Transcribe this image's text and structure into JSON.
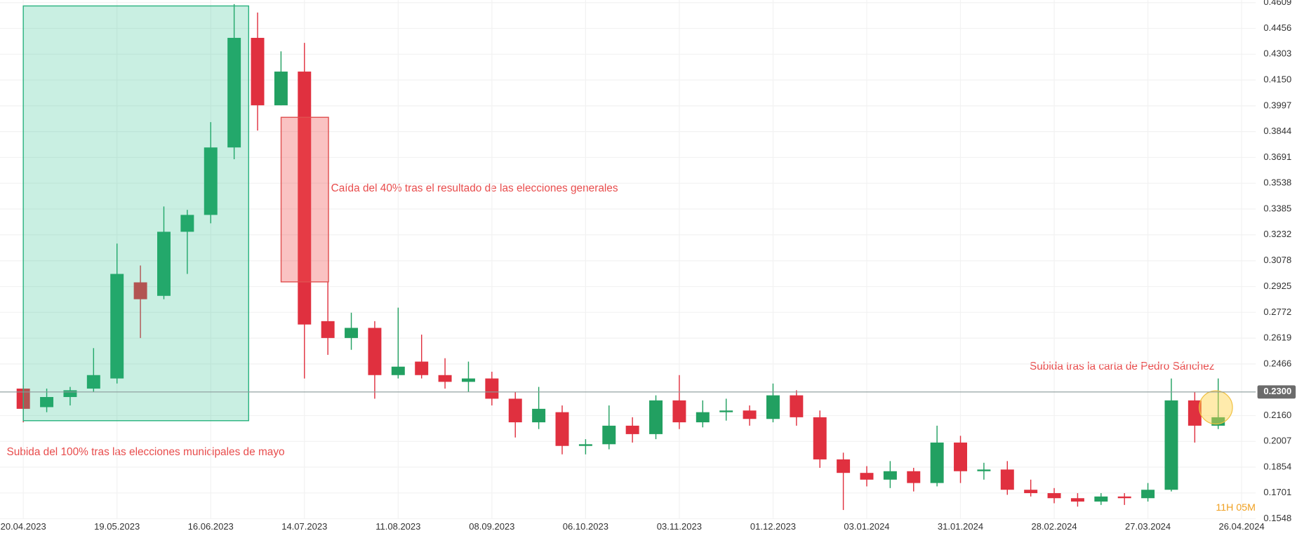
{
  "chart_data": {
    "type": "candlestick",
    "categories": [
      "20.04.2023",
      null,
      null,
      null,
      "19.05.2023",
      null,
      null,
      null,
      "16.06.2023",
      null,
      null,
      null,
      "14.07.2023",
      null,
      null,
      null,
      "11.08.2023",
      null,
      null,
      null,
      "08.09.2023",
      null,
      null,
      null,
      "06.10.2023",
      null,
      null,
      null,
      "03.11.2023",
      null,
      null,
      null,
      "01.12.2023",
      null,
      null,
      null,
      "03.01.2024",
      null,
      null,
      null,
      "31.01.2024",
      null,
      null,
      null,
      "28.02.2024",
      null,
      null,
      null,
      "27.03.2024",
      null,
      null,
      null,
      "26.04.2024"
    ],
    "open": [
      0.232,
      0.221,
      0.227,
      0.232,
      0.238,
      0.295,
      0.287,
      0.325,
      0.335,
      0.375,
      0.44,
      0.4,
      0.42,
      0.272,
      0.262,
      0.268,
      0.24,
      0.248,
      0.24,
      0.236,
      0.238,
      0.226,
      0.212,
      0.218,
      0.198,
      0.199,
      0.21,
      0.205,
      0.225,
      0.212,
      0.218,
      0.219,
      0.214,
      0.228,
      0.215,
      0.19,
      0.182,
      0.178,
      0.183,
      0.176,
      0.2,
      0.183,
      0.184,
      0.172,
      0.17,
      0.167,
      0.165,
      0.168,
      0.167,
      0.172,
      0.225,
      0.21,
      null
    ],
    "high": [
      0.234,
      0.232,
      0.233,
      0.256,
      0.318,
      0.305,
      0.34,
      0.338,
      0.39,
      0.46,
      0.455,
      0.432,
      0.437,
      0.295,
      0.277,
      0.272,
      0.28,
      0.264,
      0.25,
      0.248,
      0.242,
      0.23,
      0.233,
      0.222,
      0.202,
      0.222,
      0.215,
      0.228,
      0.24,
      0.225,
      0.226,
      0.222,
      0.235,
      0.231,
      0.219,
      0.194,
      0.186,
      0.189,
      0.185,
      0.21,
      0.204,
      0.188,
      0.189,
      0.178,
      0.173,
      0.17,
      0.17,
      0.17,
      0.176,
      0.238,
      0.23,
      0.238,
      null
    ],
    "low": [
      0.212,
      0.218,
      0.222,
      0.23,
      0.235,
      0.262,
      0.285,
      0.3,
      0.33,
      0.368,
      0.385,
      0.4,
      0.238,
      0.252,
      0.255,
      0.226,
      0.238,
      0.238,
      0.232,
      0.23,
      0.222,
      0.203,
      0.208,
      0.193,
      0.193,
      0.196,
      0.2,
      0.202,
      0.208,
      0.209,
      0.213,
      0.21,
      0.212,
      0.21,
      0.185,
      0.16,
      0.174,
      0.173,
      0.171,
      0.174,
      0.176,
      0.178,
      0.169,
      0.168,
      0.164,
      0.162,
      0.163,
      0.163,
      0.165,
      0.171,
      0.2,
      0.208,
      null
    ],
    "close": [
      0.22,
      0.227,
      0.231,
      0.24,
      0.3,
      0.285,
      0.325,
      0.335,
      0.375,
      0.44,
      0.4,
      0.42,
      0.27,
      0.262,
      0.268,
      0.24,
      0.245,
      0.24,
      0.236,
      0.238,
      0.226,
      0.212,
      0.22,
      0.198,
      0.199,
      0.21,
      0.205,
      0.225,
      0.212,
      0.218,
      0.219,
      0.214,
      0.228,
      0.215,
      0.19,
      0.182,
      0.178,
      0.183,
      0.176,
      0.2,
      0.183,
      0.184,
      0.172,
      0.17,
      0.167,
      0.165,
      0.168,
      0.167,
      0.172,
      0.225,
      0.21,
      0.215,
      null
    ],
    "up_color": "#22a061",
    "down_color": "#e0303f",
    "ylim": [
      0.1548,
      0.4609
    ],
    "yticks": [
      0.1548,
      0.1701,
      0.1854,
      0.2007,
      {
        "value": 0.216,
        "label": "0.2160"
      },
      0.2466,
      0.2619,
      0.2772,
      0.2925,
      0.3078,
      0.3232,
      0.3385,
      0.3538,
      0.3691,
      0.3844,
      0.3997,
      {
        "value": 0.415,
        "label": "0.4150"
      },
      0.4303,
      0.4456,
      0.4609
    ],
    "grid": true,
    "last_price": {
      "value": 0.23,
      "label": "0.2300"
    },
    "annotations": [
      "Subida del 100% tras las elecciones municipales de mayo",
      "Caída del 40% tras el resultado de las elecciones generales",
      "Subida tras la carta de Pedro Sánchez"
    ],
    "countdown": "11H 05M"
  }
}
